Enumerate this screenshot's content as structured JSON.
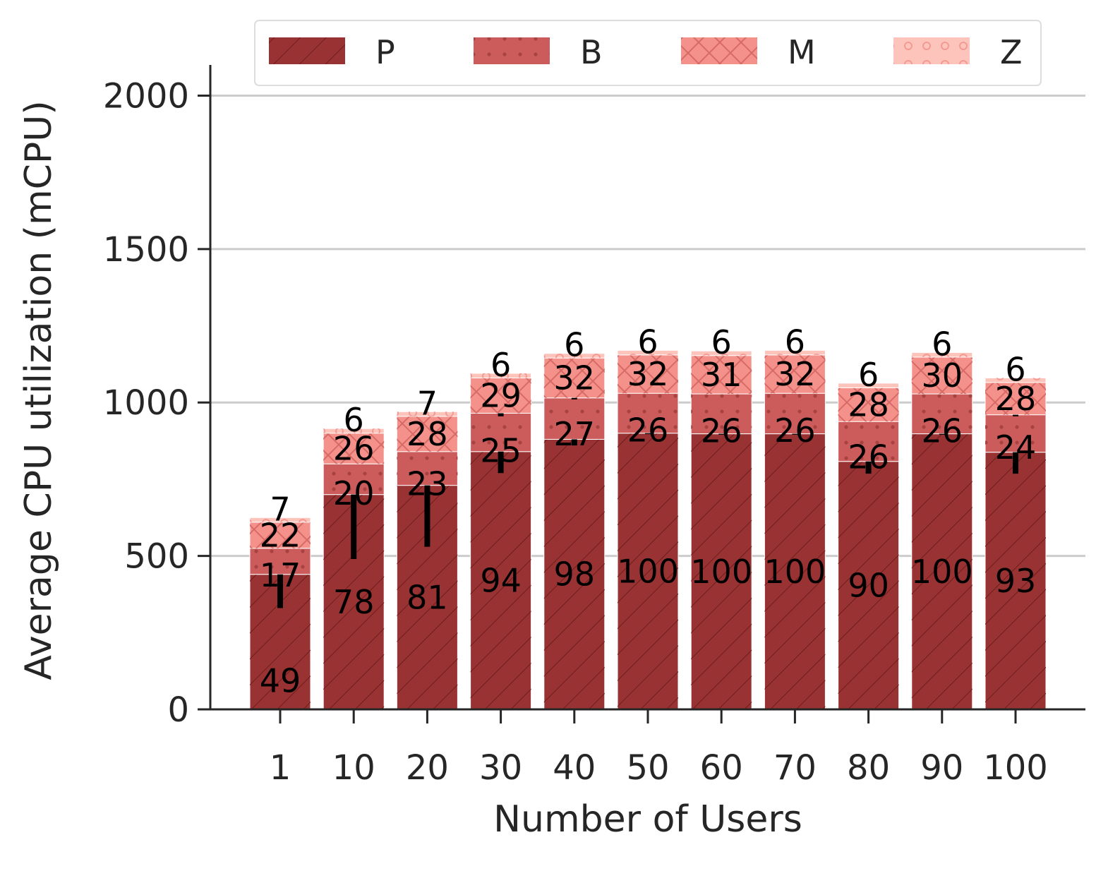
{
  "chart_data": {
    "type": "bar",
    "stacked": true,
    "title": "",
    "xlabel": "Number of Users",
    "ylabel": "Average CPU utilization (mCPU)",
    "ylim": [
      0,
      2100
    ],
    "yticks": [
      "0",
      "500",
      "1000",
      "1500",
      "2000"
    ],
    "ytick_values": [
      0,
      500,
      1000,
      1500,
      2000
    ],
    "grid": "horizontal",
    "legend_position": "top",
    "categories": [
      "1",
      "10",
      "20",
      "30",
      "40",
      "50",
      "60",
      "70",
      "80",
      "90",
      "100"
    ],
    "series": [
      {
        "name": "P",
        "color": "#993333",
        "values": [
          440,
          700,
          730,
          840,
          880,
          900,
          898,
          898,
          808,
          898,
          838
        ],
        "error": [
          110,
          210,
          200,
          70,
          20,
          3,
          3,
          3,
          40,
          3,
          70
        ],
        "labels": [
          "49",
          "78",
          "81",
          "94",
          "98",
          "100",
          "100",
          "100",
          "90",
          "100",
          "93"
        ]
      },
      {
        "name": "B",
        "color": "#cc5c5c",
        "values": [
          85,
          100,
          110,
          125,
          135,
          130,
          130,
          132,
          130,
          130,
          122
        ],
        "error": [
          0,
          0,
          0,
          10,
          5,
          0,
          0,
          0,
          0,
          0,
          5
        ],
        "labels": [
          "17",
          "20",
          "23",
          "25",
          "27",
          "26",
          "26",
          "26",
          "26",
          "26",
          "24"
        ]
      },
      {
        "name": "M",
        "color": "#f4918a",
        "values": [
          85,
          100,
          115,
          115,
          130,
          125,
          125,
          125,
          110,
          120,
          105
        ],
        "error": [
          0,
          0,
          0,
          0,
          0,
          0,
          0,
          0,
          0,
          0,
          0
        ],
        "labels": [
          "22",
          "26",
          "28",
          "29",
          "32",
          "32",
          "31",
          "32",
          "28",
          "30",
          "28"
        ]
      },
      {
        "name": "Z",
        "color": "#fdc4bc",
        "values": [
          15,
          15,
          15,
          15,
          15,
          15,
          15,
          15,
          15,
          15,
          15
        ],
        "error": [
          0,
          0,
          0,
          0,
          0,
          0,
          0,
          0,
          0,
          0,
          0
        ],
        "labels": [
          "7",
          "6",
          "7",
          "6",
          "6",
          "6",
          "6",
          "6",
          "6",
          "6",
          "6"
        ]
      }
    ]
  },
  "colors": {
    "axis": "#262626",
    "grid": "#cccccc",
    "error_bar": "#000000"
  }
}
